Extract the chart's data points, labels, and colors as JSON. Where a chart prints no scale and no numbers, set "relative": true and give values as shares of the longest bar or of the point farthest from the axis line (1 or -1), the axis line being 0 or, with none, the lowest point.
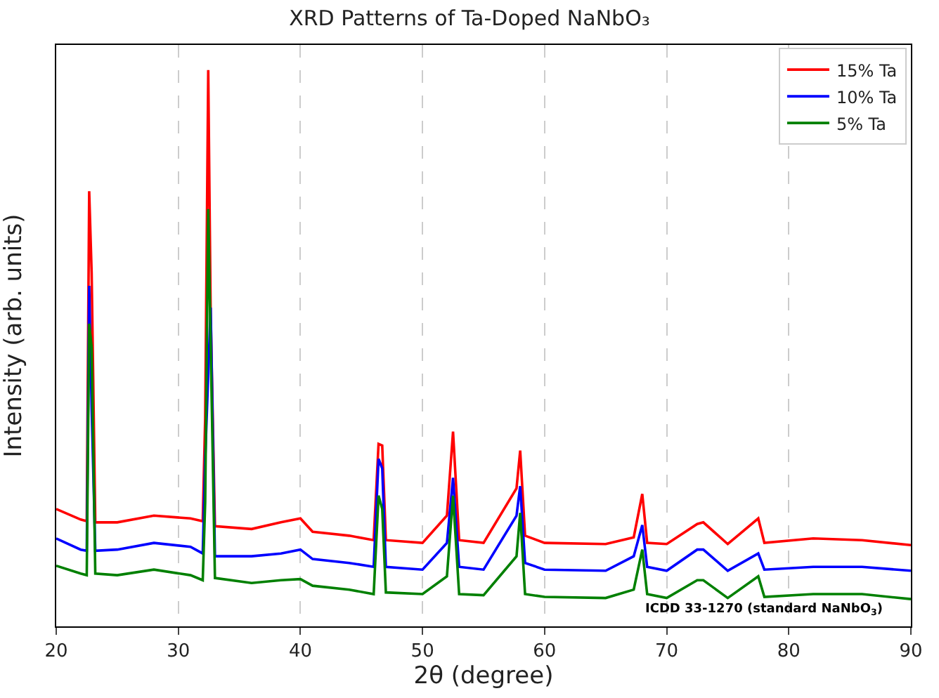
{
  "chart_data": {
    "type": "line",
    "title": "XRD Patterns of Ta-Doped NaNbO₃",
    "xlabel": "2θ (degree)",
    "ylabel": "Intensity (arb. units)",
    "relative": true,
    "tick_labels": "x",
    "grid": "x",
    "legend": "top right",
    "line_style": "solid",
    "xlim": [
      20,
      90
    ],
    "xticks": [
      20,
      30,
      40,
      50,
      60,
      70,
      80,
      90
    ],
    "annotations": [
      "ICDD 33-1270 (standard NaNbO$_{3}$)"
    ],
    "x": [
      20,
      22,
      22.5,
      22.7,
      22.9,
      23.2,
      25,
      28,
      31,
      32,
      32.2,
      32.45,
      32.65,
      33,
      36,
      38.4,
      40,
      41,
      44,
      46,
      46.4,
      46.7,
      47,
      50,
      52,
      52.5,
      53,
      55,
      57.7,
      58,
      58.4,
      60,
      65,
      67.3,
      68,
      68.4,
      70,
      72.5,
      73,
      75,
      77.5,
      78,
      82,
      86,
      90
    ],
    "series": [
      {
        "name": "15% Ta",
        "color": "#ff0000",
        "values": [
          0.211,
          0.192,
          0.189,
          0.782,
          0.636,
          0.187,
          0.187,
          0.199,
          0.194,
          0.189,
          0.374,
          1,
          0.563,
          0.18,
          0.175,
          0.187,
          0.194,
          0.17,
          0.163,
          0.155,
          0.328,
          0.325,
          0.155,
          0.15,
          0.199,
          0.35,
          0.155,
          0.15,
          0.248,
          0.316,
          0.163,
          0.15,
          0.148,
          0.16,
          0.238,
          0.15,
          0.148,
          0.184,
          0.187,
          0.148,
          0.194,
          0.15,
          0.158,
          0.155,
          0.146
        ]
      },
      {
        "name": "10% Ta",
        "color": "#0000ff",
        "values": [
          0.158,
          0.138,
          0.136,
          0.612,
          0.393,
          0.136,
          0.138,
          0.15,
          0.143,
          0.131,
          0.301,
          null,
          0.573,
          0.126,
          0.126,
          0.131,
          0.138,
          0.121,
          0.114,
          0.107,
          0.301,
          0.284,
          0.107,
          0.102,
          0.15,
          0.267,
          0.107,
          0.102,
          0.199,
          0.252,
          0.114,
          0.102,
          0.1,
          0.126,
          0.182,
          0.107,
          0.1,
          0.138,
          0.138,
          0.1,
          0.131,
          0.102,
          0.107,
          0.107,
          0.1
        ]
      },
      {
        "name": "5% Ta",
        "color": "#008000",
        "values": [
          0.109,
          0.095,
          0.092,
          0.544,
          0.502,
          0.095,
          0.092,
          0.102,
          0.092,
          0.083,
          0.223,
          0.75,
          0.507,
          0.087,
          0.078,
          0.083,
          0.085,
          0.073,
          0.066,
          0.058,
          0.235,
          0.211,
          0.061,
          0.058,
          0.09,
          0.235,
          0.058,
          0.056,
          0.126,
          0.204,
          0.058,
          0.053,
          0.051,
          0.066,
          0.138,
          0.058,
          0.051,
          0.083,
          0.083,
          0.051,
          0.09,
          0.053,
          0.058,
          0.058,
          0.049
        ]
      }
    ]
  }
}
